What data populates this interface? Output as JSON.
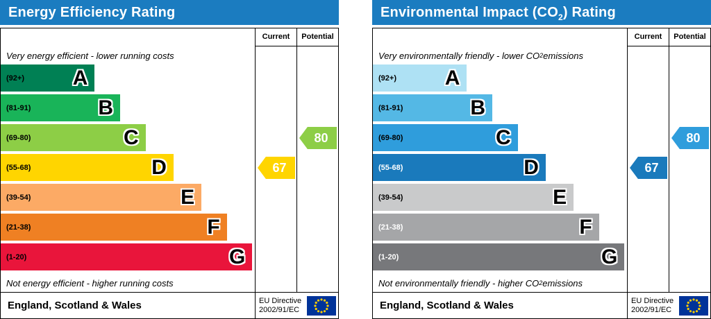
{
  "chart_data": [
    {
      "type": "bar",
      "title": "Energy Efficiency Rating",
      "categories": [
        "A (92+)",
        "B (81-91)",
        "C (69-80)",
        "D (55-68)",
        "E (39-54)",
        "F (21-38)",
        "G (1-20)"
      ],
      "band_colors": [
        "#008054",
        "#19b459",
        "#8dce46",
        "#ffd500",
        "#fcaa65",
        "#ef8023",
        "#e9153b"
      ],
      "current": 67,
      "current_band": "D",
      "potential": 80,
      "potential_band": "C",
      "top_note": "Very energy efficient - lower running costs",
      "bottom_note": "Not energy efficient - higher running costs",
      "region": "England, Scotland & Wales",
      "directive": "EU Directive 2002/91/EC"
    },
    {
      "type": "bar",
      "title": "Environmental Impact (CO2) Rating",
      "categories": [
        "A (92+)",
        "B (81-91)",
        "C (69-80)",
        "D (55-68)",
        "E (39-54)",
        "F (21-38)",
        "G (1-20)"
      ],
      "band_colors": [
        "#aee1f4",
        "#54b8e5",
        "#2f9ddc",
        "#1a7abc",
        "#c9cacb",
        "#a5a6a8",
        "#77787b"
      ],
      "current": 67,
      "current_band": "D",
      "potential": 80,
      "potential_band": "C",
      "top_note": "Very environmentally friendly - lower CO2 emissions",
      "bottom_note": "Not environmentally friendly - higher CO2 emissions",
      "region": "England, Scotland & Wales",
      "directive": "EU Directive 2002/91/EC"
    }
  ],
  "panels": [
    {
      "title": {
        "pre": "Energy Efficiency Rating",
        "sub": "",
        "post": ""
      },
      "header_color": "#1b7cc0",
      "columns": {
        "current": "Current",
        "potential": "Potential"
      },
      "top_note": {
        "pre": "Very energy efficient - lower running costs",
        "sub": "",
        "post": ""
      },
      "bottom_note": {
        "pre": "Not energy efficient - higher running costs",
        "sub": "",
        "post": ""
      },
      "bands": [
        {
          "range": "(92+)",
          "letter": "A",
          "color": "#008054",
          "width_pct": 37,
          "label_color": "#000000"
        },
        {
          "range": "(81-91)",
          "letter": "B",
          "color": "#19b459",
          "width_pct": 47,
          "label_color": "#000000"
        },
        {
          "range": "(69-80)",
          "letter": "C",
          "color": "#8dce46",
          "width_pct": 57,
          "label_color": "#000000"
        },
        {
          "range": "(55-68)",
          "letter": "D",
          "color": "#ffd500",
          "width_pct": 68,
          "label_color": "#000000"
        },
        {
          "range": "(39-54)",
          "letter": "E",
          "color": "#fcaa65",
          "width_pct": 79,
          "label_color": "#000000"
        },
        {
          "range": "(21-38)",
          "letter": "F",
          "color": "#ef8023",
          "width_pct": 89,
          "label_color": "#000000"
        },
        {
          "range": "(1-20)",
          "letter": "G",
          "color": "#e9153b",
          "width_pct": 99,
          "label_color": "#000000"
        }
      ],
      "current": {
        "value": "67",
        "band_index": 3,
        "color": "#ffd500"
      },
      "potential": {
        "value": "80",
        "band_index": 2,
        "color": "#8dce46"
      },
      "footer": {
        "region": "England, Scotland & Wales",
        "directive_line1": "EU Directive",
        "directive_line2": "2002/91/EC"
      }
    },
    {
      "title": {
        "pre": "Environmental Impact (CO",
        "sub": "2",
        "post": ") Rating"
      },
      "header_color": "#1b7cc0",
      "columns": {
        "current": "Current",
        "potential": "Potential"
      },
      "top_note": {
        "pre": "Very environmentally friendly - lower CO",
        "sub": "2",
        "post": " emissions"
      },
      "bottom_note": {
        "pre": "Not environmentally friendly - higher CO",
        "sub": "2",
        "post": " emissions"
      },
      "bands": [
        {
          "range": "(92+)",
          "letter": "A",
          "color": "#aee1f4",
          "width_pct": 37,
          "label_color": "#000000"
        },
        {
          "range": "(81-91)",
          "letter": "B",
          "color": "#54b8e5",
          "width_pct": 47,
          "label_color": "#000000"
        },
        {
          "range": "(69-80)",
          "letter": "C",
          "color": "#2f9ddc",
          "width_pct": 57,
          "label_color": "#000000"
        },
        {
          "range": "(55-68)",
          "letter": "D",
          "color": "#1a7abc",
          "width_pct": 68,
          "label_color": "#ffffff"
        },
        {
          "range": "(39-54)",
          "letter": "E",
          "color": "#c9cacb",
          "width_pct": 79,
          "label_color": "#000000"
        },
        {
          "range": "(21-38)",
          "letter": "F",
          "color": "#a5a6a8",
          "width_pct": 89,
          "label_color": "#ffffff"
        },
        {
          "range": "(1-20)",
          "letter": "G",
          "color": "#77787b",
          "width_pct": 99,
          "label_color": "#ffffff"
        }
      ],
      "current": {
        "value": "67",
        "band_index": 3,
        "color": "#1a7abc"
      },
      "potential": {
        "value": "80",
        "band_index": 2,
        "color": "#2f9ddc"
      },
      "footer": {
        "region": "England, Scotland & Wales",
        "directive_line1": "EU Directive",
        "directive_line2": "2002/91/EC"
      }
    }
  ]
}
